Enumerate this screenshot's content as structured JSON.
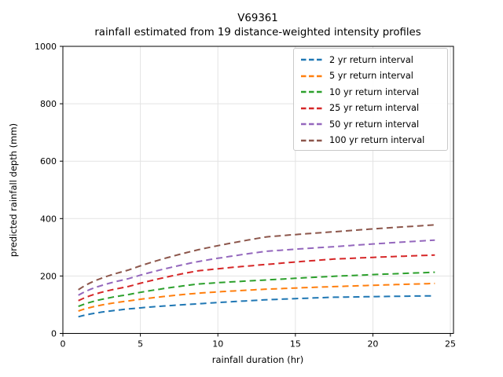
{
  "chart_data": {
    "type": "line",
    "title": "V69361",
    "subtitle": "rainfall estimated from 19 distance-weighted intensity profiles",
    "xlabel": "rainfall duration (hr)",
    "ylabel": "predicted rainfall depth (mm)",
    "xticks": [
      0,
      5,
      10,
      15,
      20,
      25
    ],
    "yticks": [
      0,
      200,
      400,
      600,
      800,
      1000
    ],
    "xlim": [
      0,
      25.2
    ],
    "ylim": [
      0,
      1000
    ],
    "grid": true,
    "legend_position": "upper right",
    "line_style": "dashed",
    "x": [
      1,
      4.2,
      8.7,
      13.1,
      17.5,
      24
    ],
    "series": [
      {
        "name": "2 yr return interval",
        "color": "#1f77b4",
        "values": [
          58,
          85,
          103,
          117,
          126,
          131
        ]
      },
      {
        "name": "5 yr return interval",
        "color": "#ff7f0e",
        "values": [
          78,
          113,
          140,
          154,
          163,
          174
        ]
      },
      {
        "name": "10 yr return interval",
        "color": "#2ca02c",
        "values": [
          94,
          135,
          172,
          186,
          199,
          213
        ]
      },
      {
        "name": "25 yr return interval",
        "color": "#d62728",
        "values": [
          114,
          163,
          218,
          240,
          259,
          273
        ]
      },
      {
        "name": "50 yr return interval",
        "color": "#9467bd",
        "values": [
          133,
          190,
          250,
          286,
          302,
          325
        ]
      },
      {
        "name": "100 yr return interval",
        "color": "#8c564b",
        "values": [
          152,
          220,
          291,
          336,
          354,
          378
        ]
      }
    ]
  }
}
